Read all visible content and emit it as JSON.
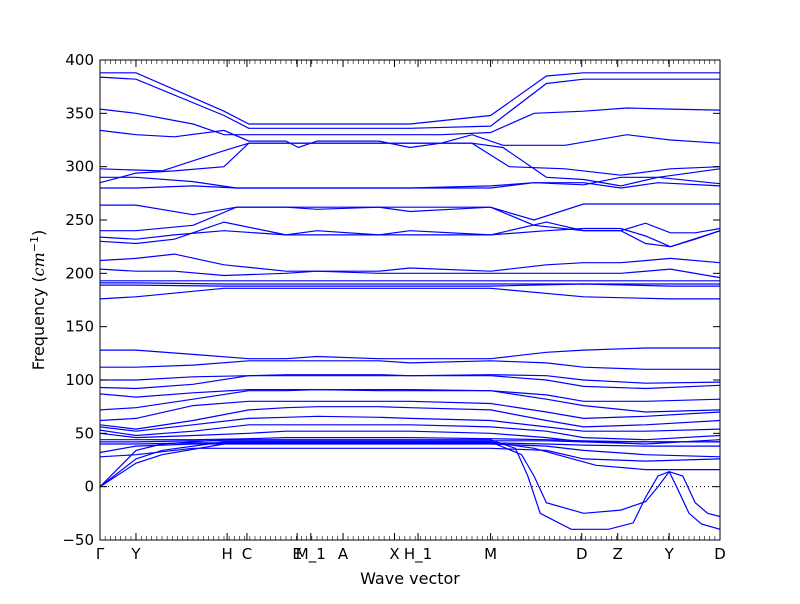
{
  "chart_data": {
    "type": "line",
    "xlabel": "Wave vector",
    "ylabel": "Frequency ($cm^{-1}$)",
    "ylabel_prefix": "Frequency (",
    "ylabel_unit_base": "cm",
    "ylabel_unit_exp": "−1",
    "ylabel_suffix": ")",
    "ylim": [
      -50,
      400
    ],
    "yticks": [
      -50,
      0,
      50,
      100,
      150,
      200,
      250,
      300,
      350,
      400
    ],
    "xlim": [
      0,
      1
    ],
    "xticks": [
      {
        "label": "Γ",
        "x": 0.0
      },
      {
        "label": "Y",
        "x": 0.058
      },
      {
        "label": "H",
        "x": 0.205
      },
      {
        "label": "C",
        "x": 0.237
      },
      {
        "label": "E",
        "x": 0.318
      },
      {
        "label": "M_1",
        "x": 0.34
      },
      {
        "label": "A",
        "x": 0.392
      },
      {
        "label": "X",
        "x": 0.475
      },
      {
        "label": "H_1",
        "x": 0.513
      },
      {
        "label": "M",
        "x": 0.63
      },
      {
        "label": "D",
        "x": 0.777
      },
      {
        "label": "Z",
        "x": 0.835
      },
      {
        "label": "Y",
        "x": 0.918
      },
      {
        "label": "D",
        "x": 1.0
      }
    ],
    "zero_line": true,
    "line_color": "#0000ff",
    "series": [
      {
        "x": [
          0,
          0.058,
          0.2,
          0.24,
          0.3,
          0.35,
          0.45,
          0.5,
          0.63,
          0.72,
          0.78,
          0.88,
          1.0
        ],
        "y": [
          388,
          388,
          352,
          340,
          340,
          340,
          340,
          340,
          348,
          385,
          388,
          388,
          388
        ]
      },
      {
        "x": [
          0,
          0.058,
          0.2,
          0.24,
          0.3,
          0.35,
          0.45,
          0.5,
          0.63,
          0.72,
          0.78,
          0.88,
          1.0
        ],
        "y": [
          384,
          382,
          348,
          336,
          336,
          336,
          336,
          336,
          338,
          378,
          382,
          382,
          382
        ]
      },
      {
        "x": [
          0,
          0.058,
          0.15,
          0.2,
          0.24,
          0.3,
          0.35,
          0.4,
          0.45,
          0.5,
          0.55,
          0.63,
          0.7,
          0.78,
          0.85,
          0.92,
          1.0
        ],
        "y": [
          354,
          350,
          340,
          330,
          330,
          330,
          330,
          330,
          330,
          330,
          330,
          332,
          350,
          352,
          355,
          354,
          353
        ]
      },
      {
        "x": [
          0,
          0.058,
          0.12,
          0.2,
          0.24,
          0.3,
          0.32,
          0.35,
          0.45,
          0.5,
          0.55,
          0.6,
          0.65,
          0.75,
          0.85,
          0.92,
          1.0
        ],
        "y": [
          334,
          330,
          328,
          334,
          324,
          324,
          318,
          324,
          324,
          318,
          322,
          330,
          320,
          320,
          330,
          325,
          322
        ]
      },
      {
        "x": [
          0,
          0.05,
          0.1,
          0.2,
          0.24,
          0.3,
          0.35,
          0.45,
          0.5,
          0.6,
          0.65,
          0.72,
          0.78,
          0.84,
          0.9,
          1.0
        ],
        "y": [
          298,
          297,
          296,
          315,
          322,
          322,
          322,
          322,
          322,
          322,
          318,
          290,
          288,
          282,
          290,
          298
        ]
      },
      {
        "x": [
          0,
          0.058,
          0.12,
          0.2,
          0.24,
          0.3,
          0.35,
          0.45,
          0.5,
          0.6,
          0.66,
          0.75,
          0.84,
          0.92,
          1.0
        ],
        "y": [
          285,
          294,
          296,
          300,
          322,
          322,
          322,
          322,
          322,
          322,
          300,
          298,
          292,
          298,
          300
        ]
      },
      {
        "x": [
          0,
          0.058,
          0.15,
          0.22,
          0.3,
          0.35,
          0.45,
          0.5,
          0.63,
          0.7,
          0.78,
          0.84,
          0.9,
          1.0
        ],
        "y": [
          290,
          290,
          286,
          280,
          280,
          280,
          280,
          280,
          282,
          285,
          283,
          290,
          290,
          284
        ]
      },
      {
        "x": [
          0,
          0.058,
          0.15,
          0.22,
          0.3,
          0.35,
          0.45,
          0.5,
          0.63,
          0.7,
          0.78,
          0.84,
          0.9,
          1.0
        ],
        "y": [
          280,
          280,
          282,
          280,
          280,
          280,
          280,
          280,
          280,
          285,
          285,
          280,
          285,
          282
        ]
      },
      {
        "x": [
          0,
          0.058,
          0.15,
          0.22,
          0.3,
          0.35,
          0.45,
          0.5,
          0.63,
          0.7,
          0.78,
          0.84,
          0.9,
          1.0
        ],
        "y": [
          264,
          264,
          255,
          262,
          262,
          262,
          262,
          262,
          262,
          250,
          265,
          265,
          265,
          265
        ]
      },
      {
        "x": [
          0,
          0.058,
          0.15,
          0.22,
          0.3,
          0.35,
          0.45,
          0.5,
          0.63,
          0.7,
          0.78,
          0.84,
          0.88,
          0.92,
          0.96,
          1.0
        ],
        "y": [
          240,
          240,
          245,
          262,
          262,
          260,
          262,
          258,
          262,
          245,
          240,
          240,
          247,
          238,
          238,
          242
        ]
      },
      {
        "x": [
          0,
          0.058,
          0.12,
          0.2,
          0.3,
          0.35,
          0.45,
          0.5,
          0.63,
          0.72,
          0.78,
          0.84,
          0.88,
          0.92,
          0.96,
          1.0
        ],
        "y": [
          234,
          232,
          236,
          240,
          236,
          240,
          236,
          240,
          236,
          240,
          242,
          242,
          235,
          225,
          232,
          240
        ]
      },
      {
        "x": [
          0,
          0.058,
          0.12,
          0.2,
          0.3,
          0.35,
          0.45,
          0.5,
          0.63,
          0.72,
          0.78,
          0.84,
          0.88,
          0.92,
          1.0
        ],
        "y": [
          230,
          228,
          232,
          248,
          236,
          236,
          236,
          236,
          236,
          248,
          240,
          240,
          228,
          225,
          240
        ]
      },
      {
        "x": [
          0,
          0.058,
          0.12,
          0.2,
          0.3,
          0.35,
          0.45,
          0.5,
          0.63,
          0.72,
          0.78,
          0.84,
          0.92,
          1.0
        ],
        "y": [
          212,
          214,
          218,
          208,
          202,
          202,
          202,
          205,
          202,
          208,
          210,
          210,
          214,
          210
        ]
      },
      {
        "x": [
          0,
          0.058,
          0.12,
          0.2,
          0.3,
          0.35,
          0.45,
          0.5,
          0.63,
          0.72,
          0.78,
          0.84,
          0.92,
          1.0
        ],
        "y": [
          204,
          202,
          202,
          198,
          200,
          202,
          200,
          200,
          200,
          200,
          200,
          200,
          204,
          196
        ]
      },
      {
        "x": [
          0,
          0.058,
          0.2,
          0.3,
          0.45,
          0.63,
          0.78,
          0.92,
          1.0
        ],
        "y": [
          193,
          193,
          193,
          193,
          193,
          193,
          193,
          193,
          193
        ]
      },
      {
        "x": [
          0,
          0.058,
          0.2,
          0.3,
          0.45,
          0.63,
          0.78,
          0.92,
          1.0
        ],
        "y": [
          191,
          191,
          190,
          190,
          190,
          190,
          190,
          190,
          190
        ]
      },
      {
        "x": [
          0,
          0.058,
          0.2,
          0.3,
          0.45,
          0.63,
          0.78,
          0.92,
          1.0
        ],
        "y": [
          189,
          189,
          188,
          188,
          188,
          188,
          190,
          188,
          188
        ]
      },
      {
        "x": [
          0,
          0.058,
          0.2,
          0.3,
          0.45,
          0.63,
          0.78,
          0.92,
          1.0
        ],
        "y": [
          176,
          178,
          186,
          186,
          186,
          186,
          178,
          176,
          176
        ]
      },
      {
        "x": [
          0,
          0.058,
          0.15,
          0.24,
          0.3,
          0.35,
          0.45,
          0.5,
          0.63,
          0.72,
          0.78,
          0.88,
          1.0
        ],
        "y": [
          128,
          128,
          124,
          120,
          120,
          122,
          120,
          120,
          120,
          126,
          128,
          130,
          130
        ]
      },
      {
        "x": [
          0,
          0.058,
          0.15,
          0.24,
          0.3,
          0.35,
          0.45,
          0.5,
          0.63,
          0.72,
          0.78,
          0.88,
          1.0
        ],
        "y": [
          112,
          112,
          114,
          118,
          118,
          118,
          118,
          116,
          118,
          116,
          112,
          110,
          110
        ]
      },
      {
        "x": [
          0,
          0.058,
          0.15,
          0.24,
          0.3,
          0.35,
          0.45,
          0.5,
          0.63,
          0.72,
          0.78,
          0.88,
          1.0
        ],
        "y": [
          100,
          100,
          103,
          104,
          105,
          105,
          105,
          104,
          105,
          104,
          100,
          97,
          98
        ]
      },
      {
        "x": [
          0,
          0.058,
          0.15,
          0.24,
          0.3,
          0.35,
          0.45,
          0.5,
          0.63,
          0.72,
          0.78,
          0.88,
          1.0
        ],
        "y": [
          93,
          92,
          96,
          104,
          104,
          104,
          104,
          104,
          104,
          100,
          94,
          92,
          95
        ]
      },
      {
        "x": [
          0,
          0.058,
          0.15,
          0.24,
          0.3,
          0.35,
          0.45,
          0.5,
          0.63,
          0.72,
          0.78,
          0.88,
          1.0
        ],
        "y": [
          87,
          84,
          88,
          91,
          91,
          91,
          91,
          91,
          90,
          86,
          80,
          80,
          82
        ]
      },
      {
        "x": [
          0,
          0.058,
          0.15,
          0.24,
          0.3,
          0.35,
          0.45,
          0.5,
          0.63,
          0.72,
          0.78,
          0.88,
          1.0
        ],
        "y": [
          72,
          74,
          82,
          90,
          90,
          91,
          90,
          90,
          90,
          82,
          76,
          70,
          72
        ]
      },
      {
        "x": [
          0,
          0.058,
          0.15,
          0.24,
          0.3,
          0.35,
          0.45,
          0.5,
          0.63,
          0.72,
          0.78,
          0.88,
          1.0
        ],
        "y": [
          62,
          64,
          76,
          80,
          80,
          80,
          80,
          80,
          78,
          70,
          64,
          66,
          70
        ]
      },
      {
        "x": [
          0,
          0.058,
          0.15,
          0.24,
          0.3,
          0.35,
          0.45,
          0.5,
          0.63,
          0.72,
          0.78,
          0.88,
          1.0
        ],
        "y": [
          58,
          54,
          62,
          72,
          74,
          75,
          75,
          74,
          72,
          62,
          56,
          58,
          62
        ]
      },
      {
        "x": [
          0,
          0.058,
          0.15,
          0.24,
          0.3,
          0.35,
          0.45,
          0.5,
          0.63,
          0.72,
          0.78,
          0.88,
          1.0
        ],
        "y": [
          56,
          52,
          58,
          64,
          65,
          66,
          65,
          64,
          62,
          56,
          52,
          52,
          54
        ]
      },
      {
        "x": [
          0,
          0.058,
          0.15,
          0.24,
          0.3,
          0.35,
          0.45,
          0.5,
          0.63,
          0.72,
          0.78,
          0.88,
          1.0
        ],
        "y": [
          53,
          48,
          52,
          58,
          58,
          58,
          58,
          58,
          56,
          52,
          46,
          44,
          48
        ]
      },
      {
        "x": [
          0,
          0.058,
          0.15,
          0.24,
          0.3,
          0.35,
          0.45,
          0.5,
          0.63,
          0.72,
          0.78,
          0.88,
          1.0
        ],
        "y": [
          50,
          46,
          48,
          50,
          52,
          52,
          52,
          52,
          50,
          46,
          42,
          40,
          44
        ]
      },
      {
        "x": [
          0,
          0.058,
          0.15,
          0.24,
          0.3,
          0.35,
          0.45,
          0.5,
          0.63,
          0.72,
          0.78,
          0.88,
          1.0
        ],
        "y": [
          44,
          44,
          44,
          45,
          46,
          46,
          46,
          46,
          45,
          44,
          43,
          42,
          42
        ]
      },
      {
        "x": [
          0,
          0.058,
          0.15,
          0.24,
          0.3,
          0.35,
          0.45,
          0.5,
          0.63,
          0.72,
          0.78,
          0.88,
          1.0
        ],
        "y": [
          42,
          42,
          43,
          43,
          43,
          43,
          43,
          43,
          43,
          43,
          42,
          42,
          42
        ]
      },
      {
        "x": [
          0,
          0.058,
          0.15,
          0.24,
          0.3,
          0.35,
          0.45,
          0.5,
          0.63,
          0.72,
          0.78,
          0.88,
          1.0
        ],
        "y": [
          40,
          40,
          41,
          41,
          41,
          41,
          41,
          41,
          41,
          40,
          39,
          38,
          38
        ]
      },
      {
        "x": [
          0,
          0.058,
          0.15,
          0.24,
          0.3,
          0.35,
          0.45,
          0.5,
          0.63,
          0.72,
          0.78,
          0.88,
          1.0
        ],
        "y": [
          32,
          38,
          40,
          40,
          40,
          40,
          40,
          40,
          40,
          38,
          34,
          30,
          28
        ]
      },
      {
        "x": [
          0,
          0.058,
          0.15,
          0.24,
          0.3,
          0.35,
          0.45,
          0.5,
          0.63,
          0.72,
          0.78,
          0.88,
          1.0
        ],
        "y": [
          28,
          30,
          36,
          36,
          36,
          36,
          36,
          36,
          36,
          34,
          26,
          24,
          26
        ]
      },
      {
        "x": [
          0,
          0.058,
          0.1,
          0.2,
          0.24,
          0.3,
          0.35,
          0.45,
          0.5,
          0.63,
          0.7,
          0.75,
          0.8,
          0.88,
          1.0
        ],
        "y": [
          0,
          22,
          30,
          40,
          42,
          42,
          42,
          42,
          42,
          42,
          36,
          28,
          20,
          16,
          16
        ]
      },
      {
        "x": [
          0,
          0.058,
          0.1,
          0.2,
          0.24,
          0.3,
          0.35,
          0.45,
          0.5,
          0.63,
          0.68,
          0.7,
          0.72,
          0.78,
          0.84,
          0.88,
          0.9,
          0.918,
          0.94,
          0.96,
          0.98,
          1.0
        ],
        "y": [
          0,
          26,
          34,
          42,
          42,
          42,
          42,
          42,
          42,
          42,
          30,
          10,
          -15,
          -25,
          -22,
          -14,
          0,
          14,
          10,
          -15,
          -25,
          -28
        ]
      },
      {
        "x": [
          0,
          0.058,
          0.1,
          0.2,
          0.24,
          0.3,
          0.35,
          0.45,
          0.5,
          0.63,
          0.67,
          0.69,
          0.71,
          0.76,
          0.82,
          0.86,
          0.88,
          0.9,
          0.918,
          0.93,
          0.95,
          0.97,
          1.0
        ],
        "y": [
          0,
          34,
          40,
          44,
          44,
          44,
          44,
          44,
          44,
          44,
          36,
          10,
          -25,
          -40,
          -40,
          -34,
          -10,
          10,
          14,
          0,
          -25,
          -35,
          -40
        ]
      }
    ]
  }
}
